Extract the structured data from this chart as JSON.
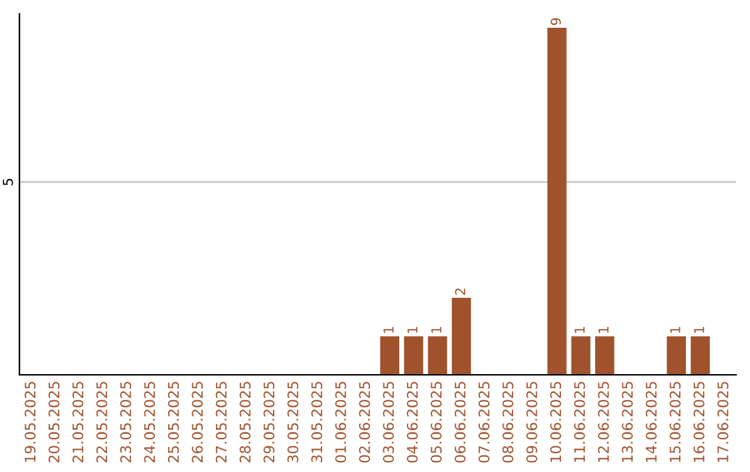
{
  "chart_data": {
    "type": "bar",
    "categories": [
      "19.05.2025",
      "20.05.2025",
      "21.05.2025",
      "22.05.2025",
      "23.05.2025",
      "24.05.2025",
      "25.05.2025",
      "26.05.2025",
      "27.05.2025",
      "28.05.2025",
      "29.05.2025",
      "30.05.2025",
      "31.05.2025",
      "01.06.2025",
      "02.06.2025",
      "03.06.2025",
      "04.06.2025",
      "05.06.2025",
      "06.06.2025",
      "07.06.2025",
      "08.06.2025",
      "09.06.2025",
      "10.06.2025",
      "11.06.2025",
      "12.06.2025",
      "13.06.2025",
      "14.06.2025",
      "15.06.2025",
      "16.06.2025",
      "17.06.2025"
    ],
    "values": [
      null,
      null,
      null,
      null,
      null,
      null,
      null,
      null,
      null,
      null,
      null,
      null,
      null,
      null,
      null,
      1,
      1,
      1,
      2,
      null,
      null,
      null,
      9,
      1,
      1,
      null,
      null,
      1,
      1,
      null
    ],
    "value_labels": [
      null,
      null,
      null,
      null,
      null,
      null,
      null,
      null,
      null,
      null,
      null,
      null,
      null,
      null,
      null,
      "1",
      "1",
      "1",
      "2",
      null,
      null,
      null,
      "9",
      "1",
      "1",
      null,
      null,
      "1",
      "1",
      null
    ],
    "color": "#a0522d",
    "ref_lines": [
      {
        "axis": "y",
        "value": 5,
        "label": "5",
        "color": "#c8c8c8"
      }
    ],
    "legend": false
  }
}
